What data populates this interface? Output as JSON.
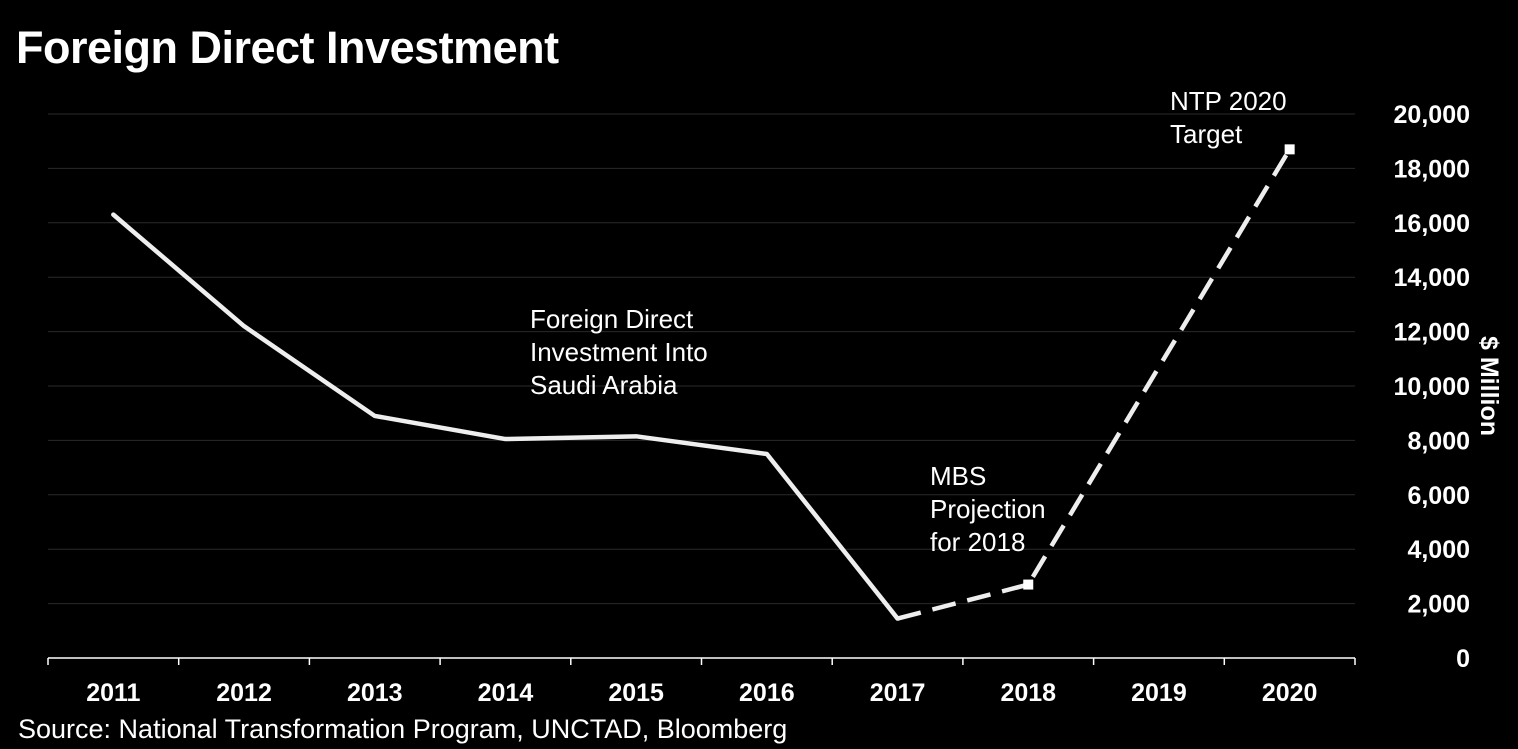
{
  "title": "Foreign Direct Investment",
  "source": "Source: National Transformation Program, UNCTAD, Bloomberg",
  "colors": {
    "background": "#000000",
    "line": "#eeeeee",
    "grid": "#2a2a2a",
    "axis": "#ffffff"
  },
  "chart_data": {
    "type": "line",
    "x": [
      "2011",
      "2012",
      "2013",
      "2014",
      "2015",
      "2016",
      "2017",
      "2018",
      "2019",
      "2020"
    ],
    "ylabel": "$ Million",
    "ylim": [
      0,
      20000
    ],
    "yticks": [
      0,
      2000,
      4000,
      6000,
      8000,
      10000,
      12000,
      14000,
      16000,
      18000,
      20000
    ],
    "ytick_labels": [
      "0",
      "2,000",
      "4,000",
      "6,000",
      "8,000",
      "10,000",
      "12,000",
      "14,000",
      "16,000",
      "18,000",
      "20,000"
    ],
    "y_axis_position": "right",
    "grid": true,
    "series": [
      {
        "style": "solid",
        "points": [
          [
            "2011",
            16300
          ],
          [
            "2012",
            12200
          ],
          [
            "2013",
            8900
          ],
          [
            "2014",
            8050
          ],
          [
            "2015",
            8150
          ],
          [
            "2016",
            7500
          ],
          [
            "2017",
            1450
          ]
        ]
      },
      {
        "style": "dashed",
        "points": [
          [
            "2017",
            1450
          ],
          [
            "2018",
            2700
          ],
          [
            "2020",
            18700
          ]
        ]
      }
    ],
    "annotations": [
      {
        "id": "fdi",
        "lines": [
          "Foreign Direct",
          "Investment Into",
          "Saudi Arabia"
        ]
      },
      {
        "id": "mbs",
        "lines": [
          "MBS",
          "Projection",
          "for 2018"
        ]
      },
      {
        "id": "ntp",
        "lines": [
          "NTP 2020",
          "Target"
        ]
      }
    ]
  }
}
